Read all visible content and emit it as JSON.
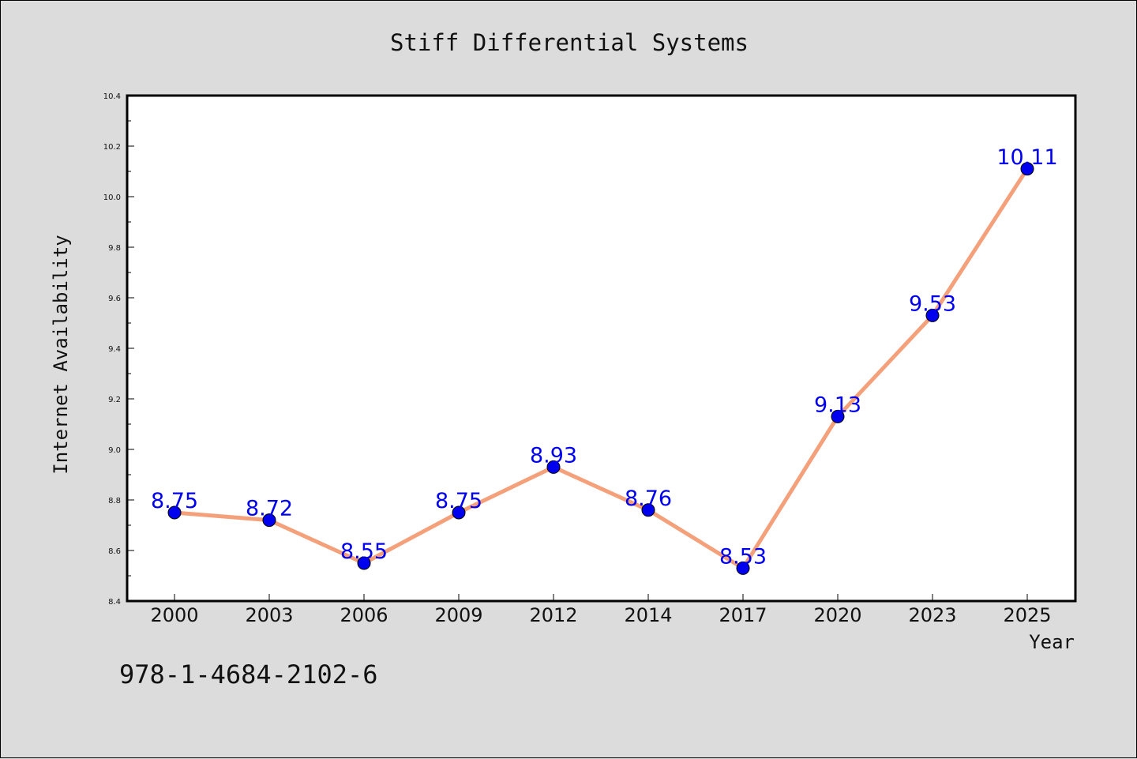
{
  "chart_data": {
    "type": "line",
    "title": "Stiff Differential Systems",
    "xlabel": "Year",
    "ylabel": "Internet Availability",
    "categories": [
      "2000",
      "2003",
      "2006",
      "2009",
      "2012",
      "2014",
      "2017",
      "2020",
      "2023",
      "2025"
    ],
    "series": [
      {
        "values": [
          8.75,
          8.72,
          8.55,
          8.75,
          8.93,
          8.76,
          8.53,
          9.13,
          9.53,
          10.11
        ],
        "data_labels": [
          "8.75",
          "8.72",
          "8.55",
          "8.75",
          "8.93",
          "8.76",
          "8.53",
          "9.13",
          "9.53",
          "10.11"
        ],
        "line_color": "#f4a07a",
        "marker_color": "#0000ee"
      }
    ],
    "ylim": [
      8.4,
      10.4
    ],
    "yticks": [
      "8.4",
      "8.6",
      "8.8",
      "9.0",
      "9.2",
      "9.4",
      "9.6",
      "9.8",
      "10.0",
      "10.2",
      "10.4"
    ],
    "grid": false,
    "legend": "none"
  },
  "annotation": "978-1-4684-2102-6",
  "colors": {
    "background": "#dcdcdc",
    "plot_background": "#ffffff",
    "line": "#f4a07a",
    "marker": "#0000ee",
    "data_label": "#0000ee"
  }
}
